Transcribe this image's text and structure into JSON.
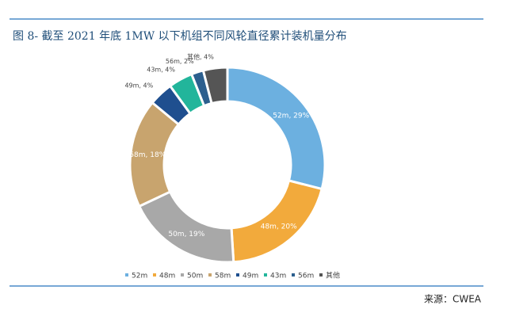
{
  "chart_data": {
    "type": "donut",
    "title": "图 8- 截至 2021 年底 1MW 以下机组不同风轮直径累计装机量分布",
    "categories": [
      "52m",
      "48m",
      "50m",
      "58m",
      "49m",
      "43m",
      "56m",
      "其他"
    ],
    "values": [
      29,
      20,
      19,
      18,
      4,
      4,
      2,
      4
    ],
    "value_labels": [
      "52m, 29%",
      "48m, 20%",
      "50m, 19%",
      "58m, 18%",
      "49m, 4%",
      "43m, 4%",
      "56m, 2%",
      "其他, 4%"
    ],
    "colors": [
      "#6cb0e0",
      "#f2aa3c",
      "#a8a8a8",
      "#c8a46e",
      "#1f4f8f",
      "#22b59b",
      "#2c5f8e",
      "#555555"
    ],
    "legend": "bottom",
    "source": "来源：CWEA"
  }
}
